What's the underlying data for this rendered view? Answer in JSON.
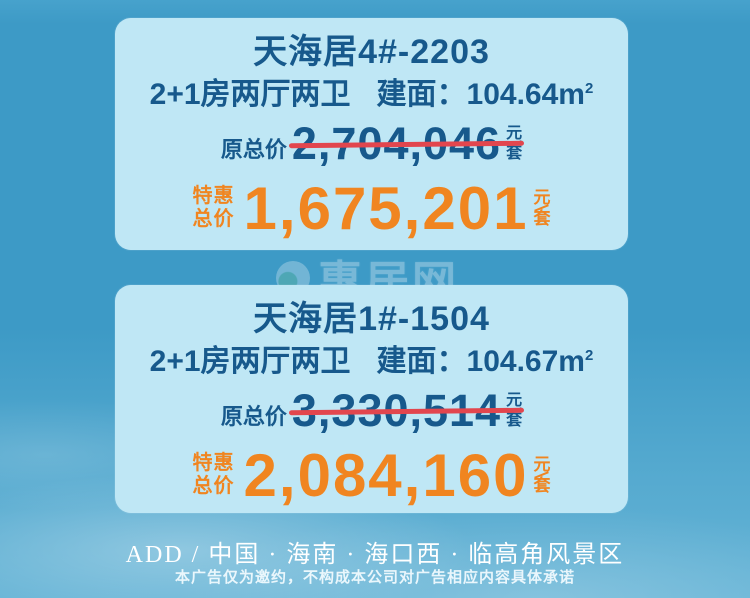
{
  "cards": [
    {
      "title": "天海居4#-2203",
      "spec_rooms": "2+1房两厅两卫",
      "spec_area_label": "建面：",
      "spec_area_value": "104.64m",
      "spec_area_sup": "2",
      "original": {
        "label": "原总价",
        "amount": "2,704,046",
        "unit_top": "元",
        "unit_bottom": "套"
      },
      "special": {
        "label_line1": "特惠",
        "label_line2": "总价",
        "amount": "1,675,201",
        "unit_top": "元",
        "unit_bottom": "套"
      }
    },
    {
      "title": "天海居1#-1504",
      "spec_rooms": "2+1房两厅两卫",
      "spec_area_label": "建面：",
      "spec_area_value": "104.67m",
      "spec_area_sup": "2",
      "original": {
        "label": "原总价",
        "amount": "3,330,514",
        "unit_top": "元",
        "unit_bottom": "套"
      },
      "special": {
        "label_line1": "特惠",
        "label_line2": "总价",
        "amount": "2,084,160",
        "unit_top": "元",
        "unit_bottom": "套"
      }
    }
  ],
  "watermark": {
    "text": "惠居网"
  },
  "footer": {
    "address": "ADD / 中国 · 海南 · 海口西 · 临高角风景区",
    "disclaimer": "本广告仅为邀约，不构成本公司对广告相应内容具体承诺"
  },
  "colors": {
    "background_blue": "#3D9AC6",
    "card_background": "#BFE7F5",
    "dark_blue_text": "#17598C",
    "accent_orange": "#F08520",
    "strike_red": "#E2464E",
    "footer_white": "#FFFFFF"
  }
}
